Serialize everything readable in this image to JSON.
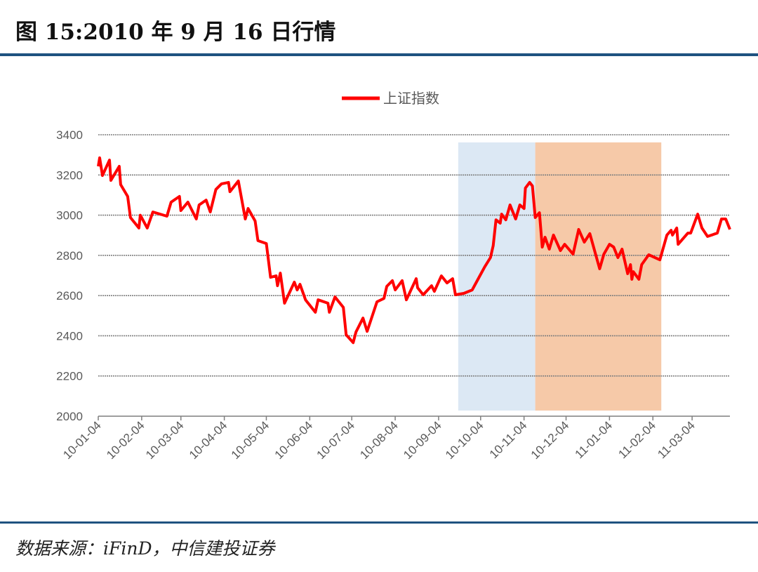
{
  "title": "图 15:2010 年 9 月 16 日行情",
  "source": "数据来源：iFinD，中信建投证券",
  "chart_data": {
    "type": "line",
    "title": "",
    "xlabel": "",
    "ylabel": "",
    "ylim": [
      2000,
      3400
    ],
    "yticks": [
      2000,
      2200,
      2400,
      2600,
      2800,
      3000,
      3200,
      3400
    ],
    "xticks": [
      "10-01-04",
      "10-02-04",
      "10-03-04",
      "10-04-04",
      "10-05-04",
      "10-06-04",
      "10-07-04",
      "10-08-04",
      "10-09-04",
      "10-10-04",
      "10-11-04",
      "10-12-04",
      "11-01-04",
      "11-02-04",
      "11-03-04"
    ],
    "xlim": [
      "2010-01-04",
      "2011-03-31"
    ],
    "grid": "horizontal dotted",
    "legend": "top-center",
    "colors": {
      "line": "#ff0000",
      "band1": "#dce8f4",
      "band2": "#f6c9a8",
      "grid": "#7f7f7f"
    },
    "bands": [
      {
        "from": "2010-09-18",
        "to": "2010-11-12",
        "color": "#dce8f4"
      },
      {
        "from": "2010-11-12",
        "to": "2011-02-10",
        "color": "#f6c9a8"
      }
    ],
    "series": [
      {
        "name": "上证指数",
        "points": [
          [
            "2010-01-04",
            3243
          ],
          [
            "2010-01-05",
            3285
          ],
          [
            "2010-01-07",
            3197
          ],
          [
            "2010-01-12",
            3274
          ],
          [
            "2010-01-13",
            3173
          ],
          [
            "2010-01-19",
            3243
          ],
          [
            "2010-01-20",
            3152
          ],
          [
            "2010-01-25",
            3093
          ],
          [
            "2010-01-27",
            2988
          ],
          [
            "2010-02-02",
            2936
          ],
          [
            "2010-02-03",
            3000
          ],
          [
            "2010-02-08",
            2936
          ],
          [
            "2010-02-12",
            3016
          ],
          [
            "2010-02-22",
            2995
          ],
          [
            "2010-02-25",
            3065
          ],
          [
            "2010-03-03",
            3093
          ],
          [
            "2010-03-04",
            3023
          ],
          [
            "2010-03-09",
            3065
          ],
          [
            "2010-03-15",
            2981
          ],
          [
            "2010-03-17",
            3051
          ],
          [
            "2010-03-22",
            3075
          ],
          [
            "2010-03-25",
            3016
          ],
          [
            "2010-03-29",
            3128
          ],
          [
            "2010-04-02",
            3156
          ],
          [
            "2010-04-07",
            3163
          ],
          [
            "2010-04-08",
            3117
          ],
          [
            "2010-04-14",
            3170
          ],
          [
            "2010-04-19",
            2981
          ],
          [
            "2010-04-21",
            3033
          ],
          [
            "2010-04-26",
            2971
          ],
          [
            "2010-04-28",
            2873
          ],
          [
            "2010-05-04",
            2859
          ],
          [
            "2010-05-07",
            2691
          ],
          [
            "2010-05-11",
            2698
          ],
          [
            "2010-05-12",
            2649
          ],
          [
            "2010-05-14",
            2712
          ],
          [
            "2010-05-17",
            2562
          ],
          [
            "2010-05-24",
            2667
          ],
          [
            "2010-05-26",
            2628
          ],
          [
            "2010-05-28",
            2656
          ],
          [
            "2010-06-01",
            2579
          ],
          [
            "2010-06-08",
            2517
          ],
          [
            "2010-06-10",
            2579
          ],
          [
            "2010-06-17",
            2562
          ],
          [
            "2010-06-18",
            2517
          ],
          [
            "2010-06-22",
            2593
          ],
          [
            "2010-06-28",
            2541
          ],
          [
            "2010-06-30",
            2405
          ],
          [
            "2010-07-05",
            2366
          ],
          [
            "2010-07-07",
            2419
          ],
          [
            "2010-07-12",
            2488
          ],
          [
            "2010-07-15",
            2422
          ],
          [
            "2010-07-22",
            2569
          ],
          [
            "2010-07-27",
            2586
          ],
          [
            "2010-07-29",
            2646
          ],
          [
            "2010-08-02",
            2674
          ],
          [
            "2010-08-04",
            2628
          ],
          [
            "2010-08-09",
            2674
          ],
          [
            "2010-08-12",
            2579
          ],
          [
            "2010-08-19",
            2684
          ],
          [
            "2010-08-20",
            2639
          ],
          [
            "2010-08-24",
            2604
          ],
          [
            "2010-08-30",
            2649
          ],
          [
            "2010-09-01",
            2621
          ],
          [
            "2010-09-06",
            2698
          ],
          [
            "2010-09-10",
            2663
          ],
          [
            "2010-09-14",
            2684
          ],
          [
            "2010-09-16",
            2604
          ],
          [
            "2010-09-22",
            2611
          ],
          [
            "2010-09-28",
            2628
          ],
          [
            "2010-10-01",
            2667
          ],
          [
            "2010-10-07",
            2744
          ],
          [
            "2010-10-11",
            2789
          ],
          [
            "2010-10-13",
            2848
          ],
          [
            "2010-10-15",
            2977
          ],
          [
            "2010-10-18",
            2960
          ],
          [
            "2010-10-19",
            3005
          ],
          [
            "2010-10-22",
            2977
          ],
          [
            "2010-10-25",
            3051
          ],
          [
            "2010-10-29",
            2981
          ],
          [
            "2010-11-01",
            3051
          ],
          [
            "2010-11-04",
            3033
          ],
          [
            "2010-11-05",
            3135
          ],
          [
            "2010-11-08",
            3163
          ],
          [
            "2010-11-10",
            3145
          ],
          [
            "2010-11-12",
            2988
          ],
          [
            "2010-11-15",
            3012
          ],
          [
            "2010-11-17",
            2841
          ],
          [
            "2010-11-19",
            2890
          ],
          [
            "2010-11-22",
            2831
          ],
          [
            "2010-11-25",
            2901
          ],
          [
            "2010-11-30",
            2824
          ],
          [
            "2010-12-03",
            2855
          ],
          [
            "2010-12-09",
            2806
          ],
          [
            "2010-12-13",
            2929
          ],
          [
            "2010-12-17",
            2866
          ],
          [
            "2010-12-21",
            2908
          ],
          [
            "2010-12-28",
            2733
          ],
          [
            "2010-12-31",
            2806
          ],
          [
            "2011-01-04",
            2855
          ],
          [
            "2011-01-07",
            2841
          ],
          [
            "2011-01-10",
            2789
          ],
          [
            "2011-01-13",
            2831
          ],
          [
            "2011-01-17",
            2709
          ],
          [
            "2011-01-19",
            2754
          ],
          [
            "2011-01-20",
            2681
          ],
          [
            "2011-01-21",
            2719
          ],
          [
            "2011-01-25",
            2681
          ],
          [
            "2011-01-27",
            2754
          ],
          [
            "2011-02-01",
            2803
          ],
          [
            "2011-02-09",
            2778
          ],
          [
            "2011-02-14",
            2901
          ],
          [
            "2011-02-17",
            2925
          ],
          [
            "2011-02-18",
            2901
          ],
          [
            "2011-02-21",
            2936
          ],
          [
            "2011-02-22",
            2855
          ],
          [
            "2011-03-01",
            2911
          ],
          [
            "2011-03-03",
            2911
          ],
          [
            "2011-03-08",
            3005
          ],
          [
            "2011-03-11",
            2936
          ],
          [
            "2011-03-15",
            2894
          ],
          [
            "2011-03-22",
            2911
          ],
          [
            "2011-03-25",
            2981
          ],
          [
            "2011-03-28",
            2981
          ],
          [
            "2011-03-31",
            2929
          ]
        ]
      }
    ]
  }
}
